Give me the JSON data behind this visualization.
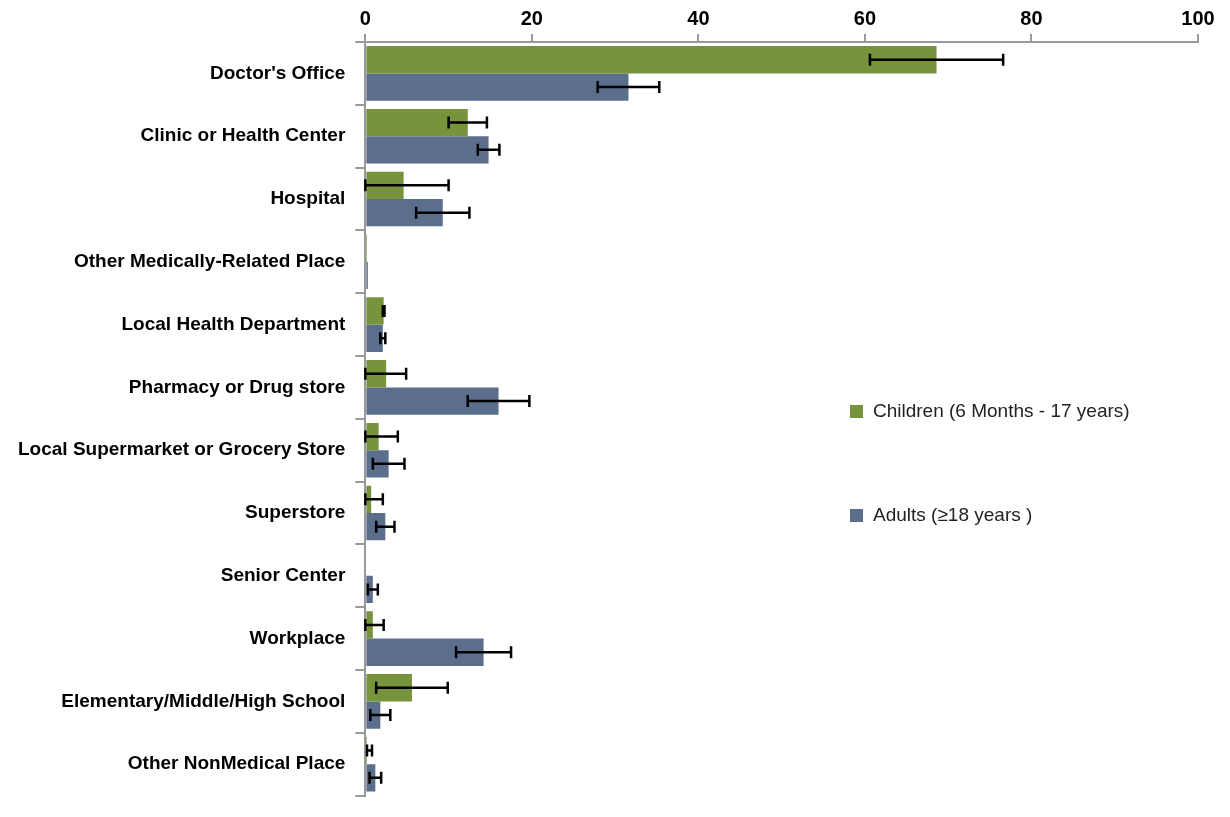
{
  "chart_data": {
    "type": "bar",
    "orientation": "horizontal",
    "categories": [
      "Doctor's Office",
      "Clinic or Health Center",
      "Hospital",
      "Other Medically-Related Place",
      "Local Health Department",
      "Pharmacy or Drug store",
      "Local Supermarket or Grocery Store",
      "Superstore",
      "Senior Center",
      "Workplace",
      "Elementary/Middle/High School",
      "Other NonMedical Place"
    ],
    "series": [
      {
        "name": "Children (6 Months - 17 years)",
        "color": "#77933c",
        "values": [
          68.6,
          12.3,
          4.6,
          0.2,
          2.2,
          2.5,
          1.6,
          0.7,
          null,
          0.9,
          5.6,
          0.2
        ],
        "errors": [
          8,
          2.3,
          [
            0,
            10.0
          ],
          null,
          0.1,
          [
            0,
            4.9
          ],
          [
            0,
            3.9
          ],
          [
            0,
            2.1
          ],
          null,
          [
            0,
            2.2
          ],
          4.3,
          [
            0.2,
            0.8
          ]
        ]
      },
      {
        "name": "Adults (≥18 years )",
        "color": "#5b6f8c",
        "values": [
          31.6,
          14.8,
          9.3,
          0.3,
          2.1,
          16.0,
          2.8,
          2.4,
          0.9,
          14.2,
          1.8,
          1.2
        ],
        "errors": [
          3.7,
          1.3,
          3.2,
          null,
          0.3,
          3.7,
          1.9,
          1.1,
          0.6,
          3.3,
          1.2,
          0.7
        ]
      }
    ],
    "xlim": [
      0,
      100
    ],
    "xticks": [
      0,
      20,
      40,
      60,
      80,
      100
    ],
    "grid": false,
    "legend": "right"
  }
}
